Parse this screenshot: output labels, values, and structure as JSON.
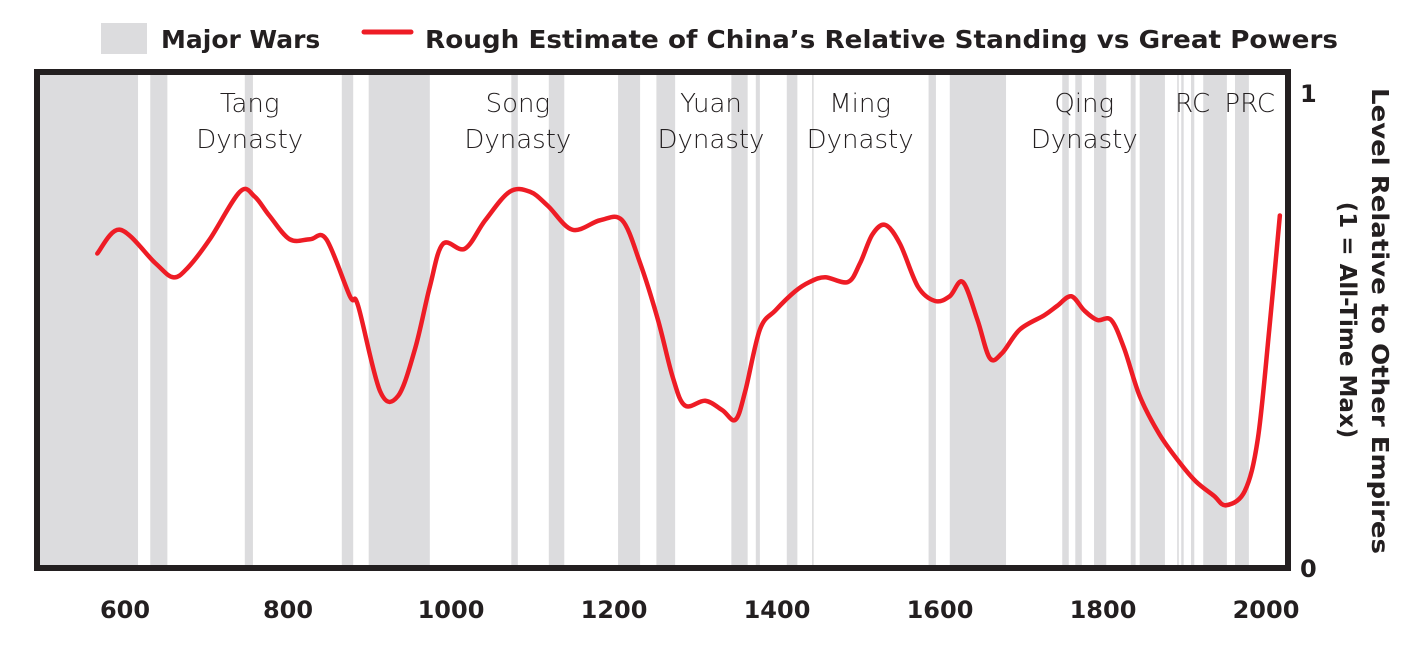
{
  "chart_data": {
    "type": "line",
    "title": "",
    "legend": {
      "placement": "top",
      "entries": [
        {
          "label": "Major Wars",
          "kind": "shaded-band",
          "color": "#dcdcde"
        },
        {
          "label": "Rough Estimate of China’s Relative Standing vs Great Powers",
          "kind": "line",
          "color": "#ee1c25"
        }
      ]
    },
    "xlabel": "",
    "ylabel": "Level Relative to Other Empires",
    "ylabel_sub": "(1 = All-Time Max)",
    "xlim": [
      492,
      2030
    ],
    "ylim": [
      0,
      1
    ],
    "x_ticks": [
      600,
      800,
      1000,
      1200,
      1400,
      1600,
      1800,
      2000
    ],
    "y_ticks": [
      {
        "value": 0,
        "label": "0"
      },
      {
        "value": 1,
        "label": "1"
      }
    ],
    "y_axis_side": "right",
    "grid": false,
    "war_periods": [
      [
        492,
        616
      ],
      [
        631,
        652
      ],
      [
        747,
        757
      ],
      [
        866,
        880
      ],
      [
        899,
        974
      ],
      [
        1074,
        1082
      ],
      [
        1120,
        1139
      ],
      [
        1205,
        1232
      ],
      [
        1252,
        1275
      ],
      [
        1344,
        1364
      ],
      [
        1374,
        1379
      ],
      [
        1412,
        1425
      ],
      [
        1443,
        1445
      ],
      [
        1586,
        1595
      ],
      [
        1612,
        1681
      ],
      [
        1750,
        1758
      ],
      [
        1766,
        1774
      ],
      [
        1789,
        1804
      ],
      [
        1834,
        1840
      ],
      [
        1845,
        1876
      ],
      [
        1891,
        1893
      ],
      [
        1896,
        1899
      ],
      [
        1908,
        1912
      ],
      [
        1923,
        1952
      ],
      [
        1962,
        1979
      ]
    ],
    "series": [
      {
        "name": "Rough Estimate of China’s Relative Standing vs Great Powers",
        "color": "#ee1c25",
        "x": [
          566,
          594,
          637,
          659,
          677,
          704,
          741,
          759,
          777,
          802,
          827,
          847,
          876,
          886,
          913,
          935,
          956,
          974,
          990,
          1017,
          1042,
          1072,
          1097,
          1119,
          1149,
          1183,
          1210,
          1232,
          1254,
          1272,
          1287,
          1312,
          1333,
          1349,
          1361,
          1379,
          1398,
          1422,
          1440,
          1459,
          1487,
          1502,
          1517,
          1533,
          1551,
          1573,
          1594,
          1612,
          1628,
          1646,
          1661,
          1676,
          1698,
          1728,
          1744,
          1761,
          1777,
          1793,
          1810,
          1826,
          1845,
          1869,
          1894,
          1914,
          1936,
          1951,
          1974,
          1990,
          2004,
          2017
        ],
        "y": [
          0.66,
          0.71,
          0.64,
          0.61,
          0.63,
          0.69,
          0.79,
          0.78,
          0.74,
          0.69,
          0.69,
          0.69,
          0.57,
          0.55,
          0.37,
          0.36,
          0.46,
          0.59,
          0.68,
          0.67,
          0.73,
          0.79,
          0.79,
          0.76,
          0.71,
          0.73,
          0.73,
          0.64,
          0.52,
          0.4,
          0.34,
          0.35,
          0.33,
          0.31,
          0.37,
          0.5,
          0.54,
          0.58,
          0.6,
          0.61,
          0.6,
          0.64,
          0.7,
          0.72,
          0.68,
          0.59,
          0.56,
          0.57,
          0.6,
          0.52,
          0.44,
          0.45,
          0.5,
          0.53,
          0.55,
          0.57,
          0.54,
          0.52,
          0.52,
          0.46,
          0.36,
          0.28,
          0.22,
          0.18,
          0.15,
          0.13,
          0.16,
          0.27,
          0.5,
          0.74
        ]
      }
    ],
    "annotations": [
      {
        "lines": [
          "Tang",
          "Dynasty"
        ],
        "x": 753
      },
      {
        "lines": [
          "Song",
          "Dynasty"
        ],
        "x": 1082
      },
      {
        "lines": [
          "Yuan",
          "Dynasty"
        ],
        "x": 1319
      },
      {
        "lines": [
          "Ming",
          "Dynasty"
        ],
        "x": 1502
      },
      {
        "lines": [
          "Qing",
          "Dynasty"
        ],
        "x": 1777
      },
      {
        "lines": [
          "RC"
        ],
        "x": 1910
      },
      {
        "lines": [
          "PRC"
        ],
        "x": 1980
      }
    ]
  }
}
